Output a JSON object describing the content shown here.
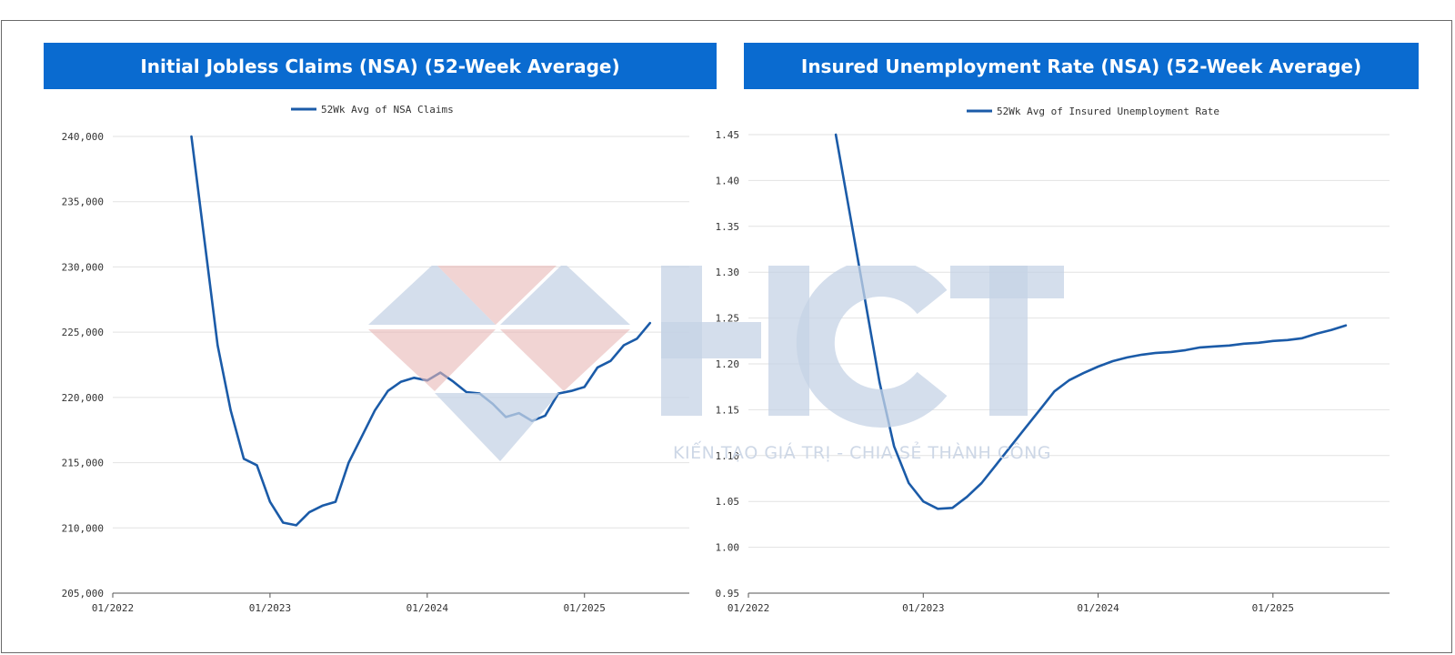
{
  "chart_data": [
    {
      "type": "line",
      "title": "Initial Jobless Claims (NSA) (52-Week Average)",
      "legend": [
        "52Wk Avg of NSA Claims"
      ],
      "x_tick_labels": [
        "01/2022",
        "01/2023",
        "01/2024",
        "01/2025"
      ],
      "y_tick_labels": [
        "240,000",
        "235,000",
        "230,000",
        "225,000",
        "220,000",
        "215,000",
        "210,000",
        "205,000"
      ],
      "ylim": [
        205000,
        240000
      ],
      "xlim": [
        "2022-01",
        "2025-09"
      ],
      "grid": true,
      "legend_position": "top",
      "series": [
        {
          "name": "52Wk Avg of NSA Claims",
          "color": "#1b5ba8",
          "points": [
            [
              "2022-07",
              240000
            ],
            [
              "2022-08",
              232000
            ],
            [
              "2022-09",
              224000
            ],
            [
              "2022-10",
              219000
            ],
            [
              "2022-11",
              215300
            ],
            [
              "2022-12",
              214800
            ],
            [
              "2023-01",
              212000
            ],
            [
              "2023-02",
              210400
            ],
            [
              "2023-03",
              210200
            ],
            [
              "2023-04",
              211200
            ],
            [
              "2023-05",
              211700
            ],
            [
              "2023-06",
              212000
            ],
            [
              "2023-07",
              215000
            ],
            [
              "2023-08",
              217000
            ],
            [
              "2023-09",
              219000
            ],
            [
              "2023-10",
              220500
            ],
            [
              "2023-11",
              221200
            ],
            [
              "2023-12",
              221500
            ],
            [
              "2024-01",
              221300
            ],
            [
              "2024-02",
              221900
            ],
            [
              "2024-03",
              221200
            ],
            [
              "2024-04",
              220400
            ],
            [
              "2024-05",
              220300
            ],
            [
              "2024-06",
              219500
            ],
            [
              "2024-07",
              218500
            ],
            [
              "2024-08",
              218800
            ],
            [
              "2024-09",
              218200
            ],
            [
              "2024-10",
              218600
            ],
            [
              "2024-11",
              220300
            ],
            [
              "2024-12",
              220500
            ],
            [
              "2025-01",
              220800
            ],
            [
              "2025-02",
              222300
            ],
            [
              "2025-03",
              222800
            ],
            [
              "2025-04",
              224000
            ],
            [
              "2025-05",
              224500
            ],
            [
              "2025-06",
              225700
            ]
          ]
        }
      ]
    },
    {
      "type": "line",
      "title": "Insured Unemployment Rate (NSA) (52-Week Average)",
      "legend": [
        "52Wk Avg of Insured Unemployment Rate"
      ],
      "x_tick_labels": [
        "01/2022",
        "01/2023",
        "01/2024",
        "01/2025"
      ],
      "y_tick_labels": [
        "1.45",
        "1.40",
        "1.35",
        "1.30",
        "1.25",
        "1.20",
        "1.15",
        "1.10",
        "1.05",
        "1.00",
        "0.95"
      ],
      "ylim": [
        0.95,
        1.45
      ],
      "xlim": [
        "2022-01",
        "2025-09"
      ],
      "grid": true,
      "legend_position": "top",
      "series": [
        {
          "name": "52Wk Avg of Insured Unemployment Rate",
          "color": "#1b5ba8",
          "points": [
            [
              "2022-07",
              1.45
            ],
            [
              "2022-08",
              1.36
            ],
            [
              "2022-09",
              1.27
            ],
            [
              "2022-10",
              1.18
            ],
            [
              "2022-11",
              1.11
            ],
            [
              "2022-12",
              1.07
            ],
            [
              "2023-01",
              1.05
            ],
            [
              "2023-02",
              1.042
            ],
            [
              "2023-03",
              1.043
            ],
            [
              "2023-04",
              1.055
            ],
            [
              "2023-05",
              1.07
            ],
            [
              "2023-06",
              1.09
            ],
            [
              "2023-07",
              1.11
            ],
            [
              "2023-08",
              1.13
            ],
            [
              "2023-09",
              1.15
            ],
            [
              "2023-10",
              1.17
            ],
            [
              "2023-11",
              1.182
            ],
            [
              "2023-12",
              1.19
            ],
            [
              "2024-01",
              1.197
            ],
            [
              "2024-02",
              1.203
            ],
            [
              "2024-03",
              1.207
            ],
            [
              "2024-04",
              1.21
            ],
            [
              "2024-05",
              1.212
            ],
            [
              "2024-06",
              1.213
            ],
            [
              "2024-07",
              1.215
            ],
            [
              "2024-08",
              1.218
            ],
            [
              "2024-09",
              1.219
            ],
            [
              "2024-10",
              1.22
            ],
            [
              "2024-11",
              1.222
            ],
            [
              "2024-12",
              1.223
            ],
            [
              "2025-01",
              1.225
            ],
            [
              "2025-02",
              1.226
            ],
            [
              "2025-03",
              1.228
            ],
            [
              "2025-04",
              1.233
            ],
            [
              "2025-05",
              1.237
            ],
            [
              "2025-06",
              1.242
            ]
          ]
        }
      ]
    }
  ],
  "watermark": {
    "logo_text": "HCT",
    "slogan": "KIẾN TẠO GIÁ TRỊ - CHIA SẺ THÀNH CÔNG"
  }
}
